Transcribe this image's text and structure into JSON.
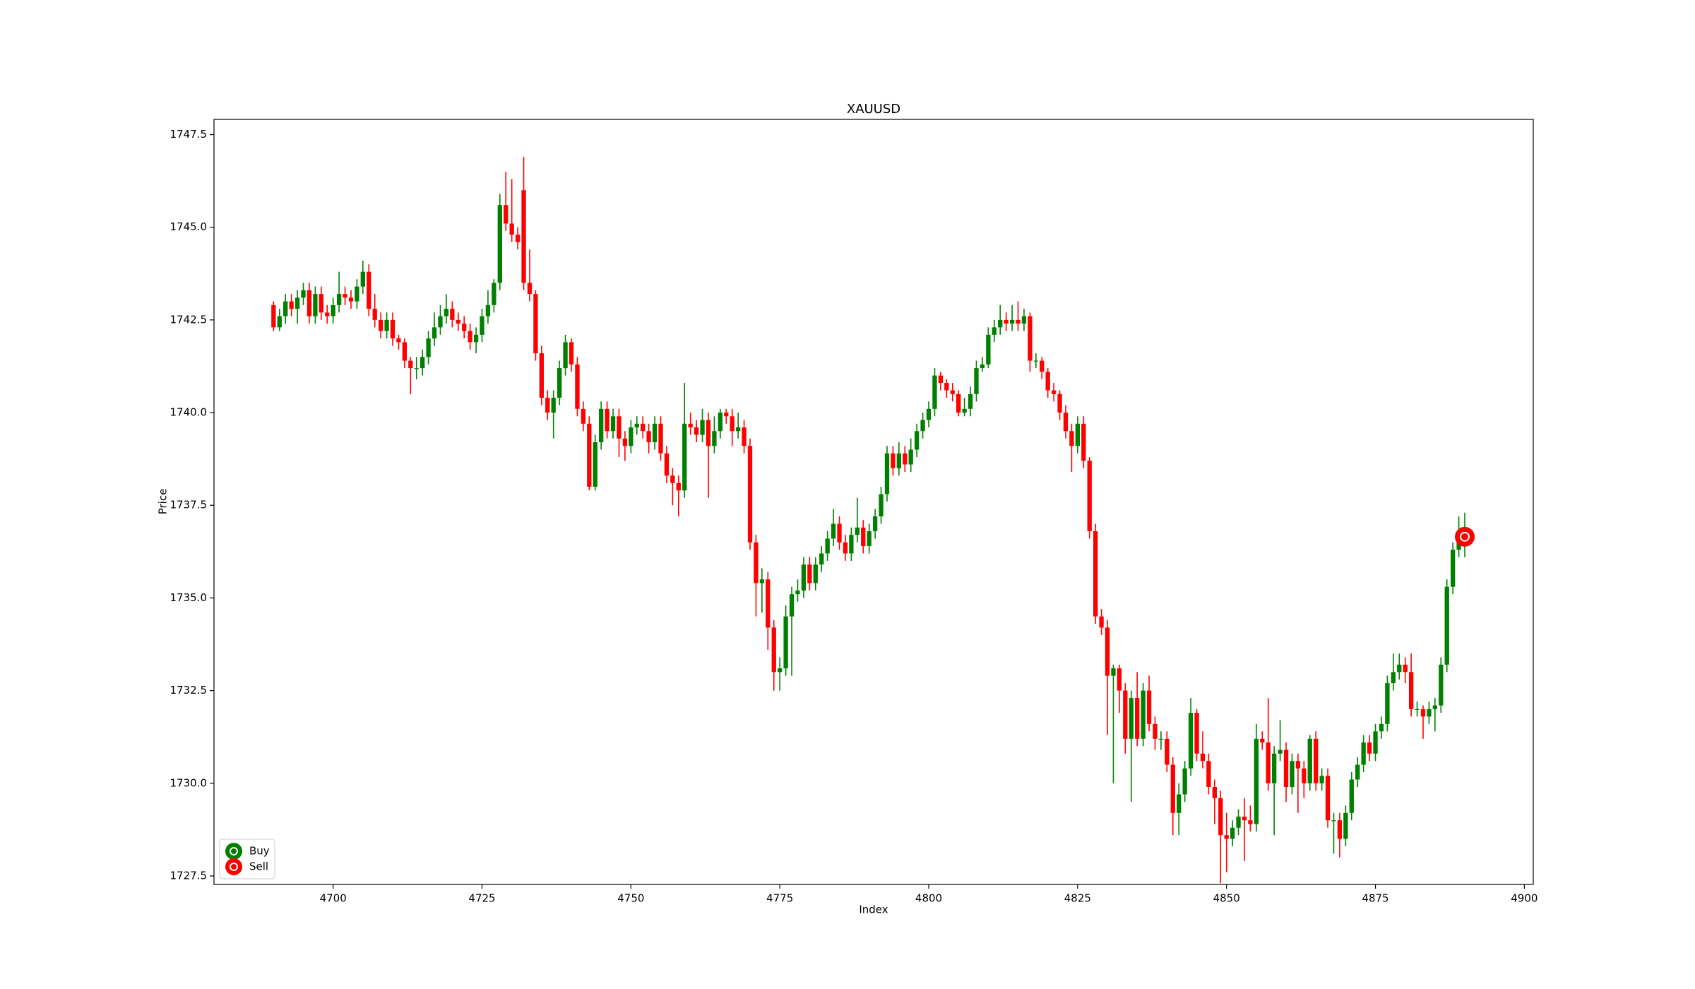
{
  "chart_data": {
    "type": "candlestick",
    "title": "XAUUSD",
    "x_label": "Index",
    "y_label": "Price",
    "up_color": "green",
    "down_color": "red",
    "grid": false,
    "legend_loc": "lower left",
    "legend": [
      {
        "name": "Buy",
        "color": "green"
      },
      {
        "name": "Sell",
        "color": "red"
      }
    ],
    "signals": [
      {
        "x": 4890,
        "y": 1736.65,
        "color": "red"
      }
    ],
    "xlim": [
      4680,
      4901.5
    ],
    "ylim": [
      1727.27,
      1747.91
    ],
    "xticks": [
      4700,
      4725,
      4750,
      4775,
      4800,
      4825,
      4850,
      4875,
      4900
    ],
    "yticks": [
      1727.5,
      {
        "value": 1730,
        "label": "1730.0"
      },
      1732.5,
      {
        "value": 1735,
        "label": "1735.0"
      },
      1737.5,
      {
        "value": 1740,
        "label": "1740.0"
      },
      1742.5,
      {
        "value": 1745,
        "label": "1745.0"
      },
      1747.5
    ],
    "x": [
      4690,
      4691,
      4692,
      4693,
      4694,
      4695,
      4696,
      4697,
      4698,
      4699,
      4700,
      4701,
      4702,
      4703,
      4704,
      4705,
      4706,
      4707,
      4708,
      4709,
      4710,
      4711,
      4712,
      4713,
      4714,
      4715,
      4716,
      4717,
      4718,
      4719,
      4720,
      4721,
      4722,
      4723,
      4724,
      4725,
      4726,
      4727,
      4728,
      4729,
      4730,
      4731,
      4732,
      4733,
      4734,
      4735,
      4736,
      4737,
      4738,
      4739,
      4740,
      4741,
      4742,
      4743,
      4744,
      4745,
      4746,
      4747,
      4748,
      4749,
      4750,
      4751,
      4752,
      4753,
      4754,
      4755,
      4756,
      4757,
      4758,
      4759,
      4760,
      4761,
      4762,
      4763,
      4764,
      4765,
      4766,
      4767,
      4768,
      4769,
      4770,
      4771,
      4772,
      4773,
      4774,
      4775,
      4776,
      4777,
      4778,
      4779,
      4780,
      4781,
      4782,
      4783,
      4784,
      4785,
      4786,
      4787,
      4788,
      4789,
      4790,
      4791,
      4792,
      4793,
      4794,
      4795,
      4796,
      4797,
      4798,
      4799,
      4800,
      4801,
      4802,
      4803,
      4804,
      4805,
      4806,
      4807,
      4808,
      4809,
      4810,
      4811,
      4812,
      4813,
      4814,
      4815,
      4816,
      4817,
      4818,
      4819,
      4820,
      4821,
      4822,
      4823,
      4824,
      4825,
      4826,
      4827,
      4828,
      4829,
      4830,
      4831,
      4832,
      4833,
      4834,
      4835,
      4836,
      4837,
      4838,
      4839,
      4840,
      4841,
      4842,
      4843,
      4844,
      4845,
      4846,
      4847,
      4848,
      4849,
      4850,
      4851,
      4852,
      4853,
      4854,
      4855,
      4856,
      4857,
      4858,
      4859,
      4860,
      4861,
      4862,
      4863,
      4864,
      4865,
      4866,
      4867,
      4868,
      4869,
      4870,
      4871,
      4872,
      4873,
      4874,
      4875,
      4876,
      4877,
      4878,
      4879,
      4880,
      4881,
      4882,
      4883,
      4884,
      4885,
      4886,
      4887,
      4888,
      4889,
      4890
    ],
    "ohlc": [
      [
        1742.9,
        1743.0,
        1742.2,
        1742.3
      ],
      [
        1742.3,
        1742.8,
        1742.2,
        1742.6
      ],
      [
        1742.6,
        1743.2,
        1742.4,
        1743.0
      ],
      [
        1743.0,
        1743.2,
        1742.6,
        1742.8
      ],
      [
        1742.8,
        1743.3,
        1742.4,
        1743.1
      ],
      [
        1743.1,
        1743.5,
        1742.9,
        1743.3
      ],
      [
        1743.3,
        1743.5,
        1742.4,
        1742.6
      ],
      [
        1742.6,
        1743.4,
        1742.4,
        1743.2
      ],
      [
        1743.2,
        1743.4,
        1742.5,
        1742.7
      ],
      [
        1742.7,
        1742.9,
        1742.4,
        1742.6
      ],
      [
        1742.6,
        1743.1,
        1742.4,
        1742.9
      ],
      [
        1742.9,
        1743.8,
        1742.7,
        1743.2
      ],
      [
        1743.2,
        1743.4,
        1742.9,
        1743.1
      ],
      [
        1743.1,
        1743.3,
        1742.8,
        1743.0
      ],
      [
        1743.0,
        1743.6,
        1742.8,
        1743.4
      ],
      [
        1743.4,
        1744.1,
        1743.2,
        1743.8
      ],
      [
        1743.8,
        1744.0,
        1742.6,
        1742.8
      ],
      [
        1742.8,
        1743.2,
        1742.3,
        1742.5
      ],
      [
        1742.5,
        1742.7,
        1742.0,
        1742.2
      ],
      [
        1742.2,
        1742.7,
        1742.0,
        1742.5
      ],
      [
        1742.5,
        1742.7,
        1741.8,
        1742.0
      ],
      [
        1742.0,
        1742.1,
        1741.7,
        1741.9
      ],
      [
        1741.9,
        1742.0,
        1741.2,
        1741.4
      ],
      [
        1741.4,
        1741.5,
        1740.5,
        1741.2
      ],
      [
        1741.2,
        1741.5,
        1740.9,
        1741.2
      ],
      [
        1741.2,
        1741.7,
        1741.0,
        1741.5
      ],
      [
        1741.5,
        1742.2,
        1741.3,
        1742.0
      ],
      [
        1742.0,
        1742.7,
        1741.8,
        1742.3
      ],
      [
        1742.3,
        1742.9,
        1742.1,
        1742.6
      ],
      [
        1742.6,
        1743.2,
        1742.4,
        1742.8
      ],
      [
        1742.8,
        1743.0,
        1742.3,
        1742.5
      ],
      [
        1742.5,
        1742.7,
        1742.2,
        1742.4
      ],
      [
        1742.4,
        1742.6,
        1742.0,
        1742.2
      ],
      [
        1742.2,
        1742.4,
        1741.7,
        1741.9
      ],
      [
        1741.9,
        1742.3,
        1741.6,
        1742.1
      ],
      [
        1742.1,
        1742.8,
        1741.9,
        1742.6
      ],
      [
        1742.6,
        1743.3,
        1742.4,
        1742.9
      ],
      [
        1742.9,
        1743.6,
        1742.7,
        1743.5
      ],
      [
        1743.5,
        1745.9,
        1743.3,
        1745.6
      ],
      [
        1745.6,
        1746.5,
        1744.9,
        1745.1
      ],
      [
        1745.1,
        1746.3,
        1744.6,
        1744.8
      ],
      [
        1744.8,
        1745.0,
        1744.4,
        1744.6
      ],
      [
        1746.0,
        1746.9,
        1743.3,
        1743.5
      ],
      [
        1743.5,
        1744.4,
        1743.0,
        1743.2
      ],
      [
        1743.2,
        1743.3,
        1741.4,
        1741.6
      ],
      [
        1741.6,
        1741.8,
        1740.2,
        1740.4
      ],
      [
        1740.4,
        1740.6,
        1739.8,
        1740.0
      ],
      [
        1740.0,
        1740.6,
        1739.3,
        1740.4
      ],
      [
        1740.4,
        1741.4,
        1740.2,
        1741.2
      ],
      [
        1741.2,
        1742.1,
        1741.0,
        1741.9
      ],
      [
        1741.9,
        1742.0,
        1741.1,
        1741.3
      ],
      [
        1741.3,
        1741.5,
        1739.9,
        1740.1
      ],
      [
        1740.1,
        1740.3,
        1739.5,
        1739.7
      ],
      [
        1739.7,
        1739.9,
        1737.9,
        1738.0
      ],
      [
        1738.0,
        1739.4,
        1737.9,
        1739.2
      ],
      [
        1739.2,
        1740.3,
        1739.0,
        1740.1
      ],
      [
        1740.1,
        1740.3,
        1739.3,
        1739.5
      ],
      [
        1739.5,
        1740.1,
        1739.3,
        1739.9
      ],
      [
        1739.9,
        1740.1,
        1738.8,
        1739.3
      ],
      [
        1739.3,
        1739.5,
        1738.7,
        1739.1
      ],
      [
        1739.1,
        1739.8,
        1738.9,
        1739.6
      ],
      [
        1739.6,
        1739.9,
        1739.4,
        1739.7
      ],
      [
        1739.7,
        1739.9,
        1739.3,
        1739.5
      ],
      [
        1739.5,
        1739.7,
        1738.9,
        1739.2
      ],
      [
        1739.2,
        1739.9,
        1739.0,
        1739.7
      ],
      [
        1739.7,
        1739.9,
        1738.7,
        1738.9
      ],
      [
        1738.9,
        1739.1,
        1738.1,
        1738.3
      ],
      [
        1738.3,
        1738.5,
        1737.5,
        1738.1
      ],
      [
        1738.1,
        1738.3,
        1737.2,
        1737.9
      ],
      [
        1737.9,
        1740.8,
        1737.7,
        1739.7
      ],
      [
        1739.7,
        1740.0,
        1739.4,
        1739.6
      ],
      [
        1739.6,
        1739.8,
        1739.2,
        1739.4
      ],
      [
        1739.4,
        1740.1,
        1739.2,
        1739.8
      ],
      [
        1739.8,
        1740.0,
        1737.7,
        1739.1
      ],
      [
        1739.1,
        1739.9,
        1738.9,
        1739.5
      ],
      [
        1739.5,
        1740.1,
        1739.3,
        1740.0
      ],
      [
        1740.0,
        1740.1,
        1739.7,
        1739.9
      ],
      [
        1739.9,
        1740.1,
        1739.1,
        1739.5
      ],
      [
        1739.5,
        1740.0,
        1739.3,
        1739.6
      ],
      [
        1739.6,
        1739.8,
        1738.9,
        1739.1
      ],
      [
        1739.1,
        1739.3,
        1736.3,
        1736.5
      ],
      [
        1736.5,
        1736.7,
        1734.5,
        1735.4
      ],
      [
        1735.4,
        1735.8,
        1734.6,
        1735.5
      ],
      [
        1735.5,
        1735.7,
        1733.6,
        1734.2
      ],
      [
        1734.2,
        1734.4,
        1732.5,
        1733.0
      ],
      [
        1733.0,
        1733.4,
        1732.5,
        1733.1
      ],
      [
        1733.1,
        1734.8,
        1732.9,
        1734.5
      ],
      [
        1734.5,
        1735.3,
        1732.9,
        1735.1
      ],
      [
        1735.1,
        1735.5,
        1734.9,
        1735.2
      ],
      [
        1735.2,
        1736.1,
        1735.0,
        1735.9
      ],
      [
        1735.9,
        1736.1,
        1735.2,
        1735.4
      ],
      [
        1735.4,
        1736.1,
        1735.2,
        1735.9
      ],
      [
        1735.9,
        1736.4,
        1735.7,
        1736.2
      ],
      [
        1736.2,
        1736.8,
        1736.0,
        1736.6
      ],
      [
        1736.6,
        1737.4,
        1736.4,
        1737.0
      ],
      [
        1737.0,
        1737.2,
        1736.3,
        1736.5
      ],
      [
        1736.5,
        1736.7,
        1736.0,
        1736.2
      ],
      [
        1736.2,
        1736.9,
        1736.0,
        1736.7
      ],
      [
        1736.7,
        1737.7,
        1736.5,
        1736.9
      ],
      [
        1736.9,
        1737.1,
        1736.2,
        1736.4
      ],
      [
        1736.4,
        1737.0,
        1736.2,
        1736.8
      ],
      [
        1736.8,
        1737.4,
        1736.6,
        1737.2
      ],
      [
        1737.2,
        1738.0,
        1737.0,
        1737.8
      ],
      [
        1737.8,
        1739.1,
        1737.6,
        1738.9
      ],
      [
        1738.9,
        1739.1,
        1738.3,
        1738.5
      ],
      [
        1738.5,
        1739.2,
        1738.3,
        1738.9
      ],
      [
        1738.9,
        1739.1,
        1738.4,
        1738.6
      ],
      [
        1738.6,
        1739.3,
        1738.4,
        1739.0
      ],
      [
        1739.0,
        1739.7,
        1738.8,
        1739.5
      ],
      [
        1739.5,
        1740.0,
        1739.3,
        1739.8
      ],
      [
        1739.8,
        1740.3,
        1739.6,
        1740.1
      ],
      [
        1740.1,
        1741.2,
        1739.9,
        1741.0
      ],
      [
        1741.0,
        1741.1,
        1740.6,
        1740.8
      ],
      [
        1740.8,
        1740.9,
        1740.4,
        1740.6
      ],
      [
        1740.6,
        1740.8,
        1740.3,
        1740.5
      ],
      [
        1740.5,
        1740.6,
        1739.9,
        1740.0
      ],
      [
        1740.0,
        1740.4,
        1739.9,
        1740.1
      ],
      [
        1740.1,
        1740.7,
        1739.9,
        1740.5
      ],
      [
        1740.5,
        1741.4,
        1740.3,
        1741.2
      ],
      [
        1741.2,
        1741.5,
        1741.1,
        1741.3
      ],
      [
        1741.3,
        1742.3,
        1741.2,
        1742.1
      ],
      [
        1742.1,
        1742.5,
        1741.9,
        1742.3
      ],
      [
        1742.3,
        1742.9,
        1742.1,
        1742.5
      ],
      [
        1742.5,
        1742.7,
        1742.2,
        1742.4
      ],
      [
        1742.4,
        1742.9,
        1742.2,
        1742.5
      ],
      [
        1742.5,
        1743.0,
        1742.2,
        1742.4
      ],
      [
        1742.4,
        1742.8,
        1742.2,
        1742.6
      ],
      [
        1742.6,
        1742.7,
        1741.1,
        1741.4
      ],
      [
        1741.4,
        1741.6,
        1741.2,
        1741.4
      ],
      [
        1741.4,
        1741.5,
        1740.9,
        1741.1
      ],
      [
        1741.1,
        1741.2,
        1740.4,
        1740.6
      ],
      [
        1740.6,
        1740.8,
        1740.3,
        1740.5
      ],
      [
        1740.5,
        1740.6,
        1739.8,
        1740.0
      ],
      [
        1740.0,
        1740.2,
        1739.3,
        1739.5
      ],
      [
        1739.5,
        1739.7,
        1738.4,
        1739.1
      ],
      [
        1739.1,
        1739.9,
        1738.9,
        1739.7
      ],
      [
        1739.7,
        1739.9,
        1738.5,
        1738.7
      ],
      [
        1738.7,
        1738.8,
        1736.6,
        1736.8
      ],
      [
        1736.8,
        1737.0,
        1734.3,
        1734.5
      ],
      [
        1734.5,
        1734.7,
        1734.0,
        1734.2
      ],
      [
        1734.2,
        1734.4,
        1731.3,
        1732.9
      ],
      [
        1732.9,
        1733.2,
        1730.0,
        1733.1
      ],
      [
        1733.1,
        1733.2,
        1731.9,
        1732.5
      ],
      [
        1732.5,
        1732.7,
        1730.8,
        1731.2
      ],
      [
        1731.2,
        1732.5,
        1729.5,
        1732.3
      ],
      [
        1732.3,
        1733.0,
        1731.0,
        1731.2
      ],
      [
        1731.2,
        1732.7,
        1731.0,
        1732.5
      ],
      [
        1732.5,
        1732.9,
        1731.4,
        1731.6
      ],
      [
        1731.6,
        1731.8,
        1730.9,
        1731.2
      ],
      [
        1731.2,
        1731.4,
        1730.9,
        1731.2
      ],
      [
        1731.2,
        1731.4,
        1730.3,
        1730.5
      ],
      [
        1730.5,
        1730.7,
        1728.6,
        1729.2
      ],
      [
        1729.2,
        1730.0,
        1728.6,
        1729.7
      ],
      [
        1729.7,
        1730.6,
        1729.5,
        1730.4
      ],
      [
        1730.4,
        1732.3,
        1730.2,
        1731.9
      ],
      [
        1731.9,
        1732.0,
        1730.6,
        1730.8
      ],
      [
        1730.8,
        1731.4,
        1730.4,
        1730.6
      ],
      [
        1730.6,
        1730.8,
        1729.7,
        1729.9
      ],
      [
        1729.9,
        1730.1,
        1728.9,
        1729.6
      ],
      [
        1729.6,
        1729.8,
        1727.3,
        1728.6
      ],
      [
        1728.6,
        1729.2,
        1727.6,
        1728.5
      ],
      [
        1728.5,
        1729.0,
        1728.3,
        1728.8
      ],
      [
        1728.8,
        1729.3,
        1728.6,
        1729.1
      ],
      [
        1729.1,
        1729.6,
        1727.9,
        1729.0
      ],
      [
        1729.0,
        1729.4,
        1728.7,
        1728.9
      ],
      [
        1728.9,
        1731.6,
        1728.7,
        1731.2
      ],
      [
        1731.2,
        1731.4,
        1730.9,
        1731.1
      ],
      [
        1731.1,
        1732.3,
        1729.8,
        1730.0
      ],
      [
        1730.0,
        1731.0,
        1728.6,
        1730.8
      ],
      [
        1730.8,
        1731.7,
        1730.6,
        1730.9
      ],
      [
        1730.9,
        1731.1,
        1729.5,
        1729.9
      ],
      [
        1729.9,
        1730.8,
        1729.7,
        1730.6
      ],
      [
        1730.6,
        1730.8,
        1729.2,
        1730.4
      ],
      [
        1730.4,
        1730.6,
        1729.6,
        1730.0
      ],
      [
        1730.0,
        1731.3,
        1729.8,
        1731.2
      ],
      [
        1731.2,
        1731.4,
        1729.8,
        1730.0
      ],
      [
        1730.0,
        1730.4,
        1729.8,
        1730.2
      ],
      [
        1730.2,
        1730.4,
        1728.8,
        1729.0
      ],
      [
        1729.0,
        1729.2,
        1728.1,
        1729.0
      ],
      [
        1729.0,
        1729.2,
        1728.0,
        1728.5
      ],
      [
        1728.5,
        1729.4,
        1728.3,
        1729.2
      ],
      [
        1729.2,
        1730.3,
        1729.0,
        1730.1
      ],
      [
        1730.1,
        1730.7,
        1729.9,
        1730.5
      ],
      [
        1730.5,
        1731.3,
        1730.3,
        1731.1
      ],
      [
        1731.1,
        1731.3,
        1730.6,
        1730.8
      ],
      [
        1730.8,
        1731.6,
        1730.6,
        1731.4
      ],
      [
        1731.4,
        1731.8,
        1731.2,
        1731.6
      ],
      [
        1731.6,
        1732.9,
        1731.4,
        1732.7
      ],
      [
        1732.7,
        1733.5,
        1732.5,
        1733.0
      ],
      [
        1733.0,
        1733.5,
        1732.8,
        1733.2
      ],
      [
        1733.2,
        1733.4,
        1732.7,
        1733.0
      ],
      [
        1733.0,
        1733.5,
        1731.8,
        1732.0
      ],
      [
        1732.0,
        1732.2,
        1731.8,
        1732.0
      ],
      [
        1732.0,
        1732.1,
        1731.2,
        1731.8
      ],
      [
        1731.8,
        1732.2,
        1731.6,
        1732.0
      ],
      [
        1732.0,
        1732.3,
        1731.4,
        1732.1
      ],
      [
        1732.1,
        1733.4,
        1731.9,
        1733.2
      ],
      [
        1733.2,
        1735.5,
        1733.0,
        1735.3
      ],
      [
        1735.3,
        1736.5,
        1735.1,
        1736.3
      ],
      [
        1736.3,
        1737.2,
        1736.1,
        1736.6
      ],
      [
        1736.6,
        1737.3,
        1736.1,
        1736.7
      ]
    ]
  }
}
